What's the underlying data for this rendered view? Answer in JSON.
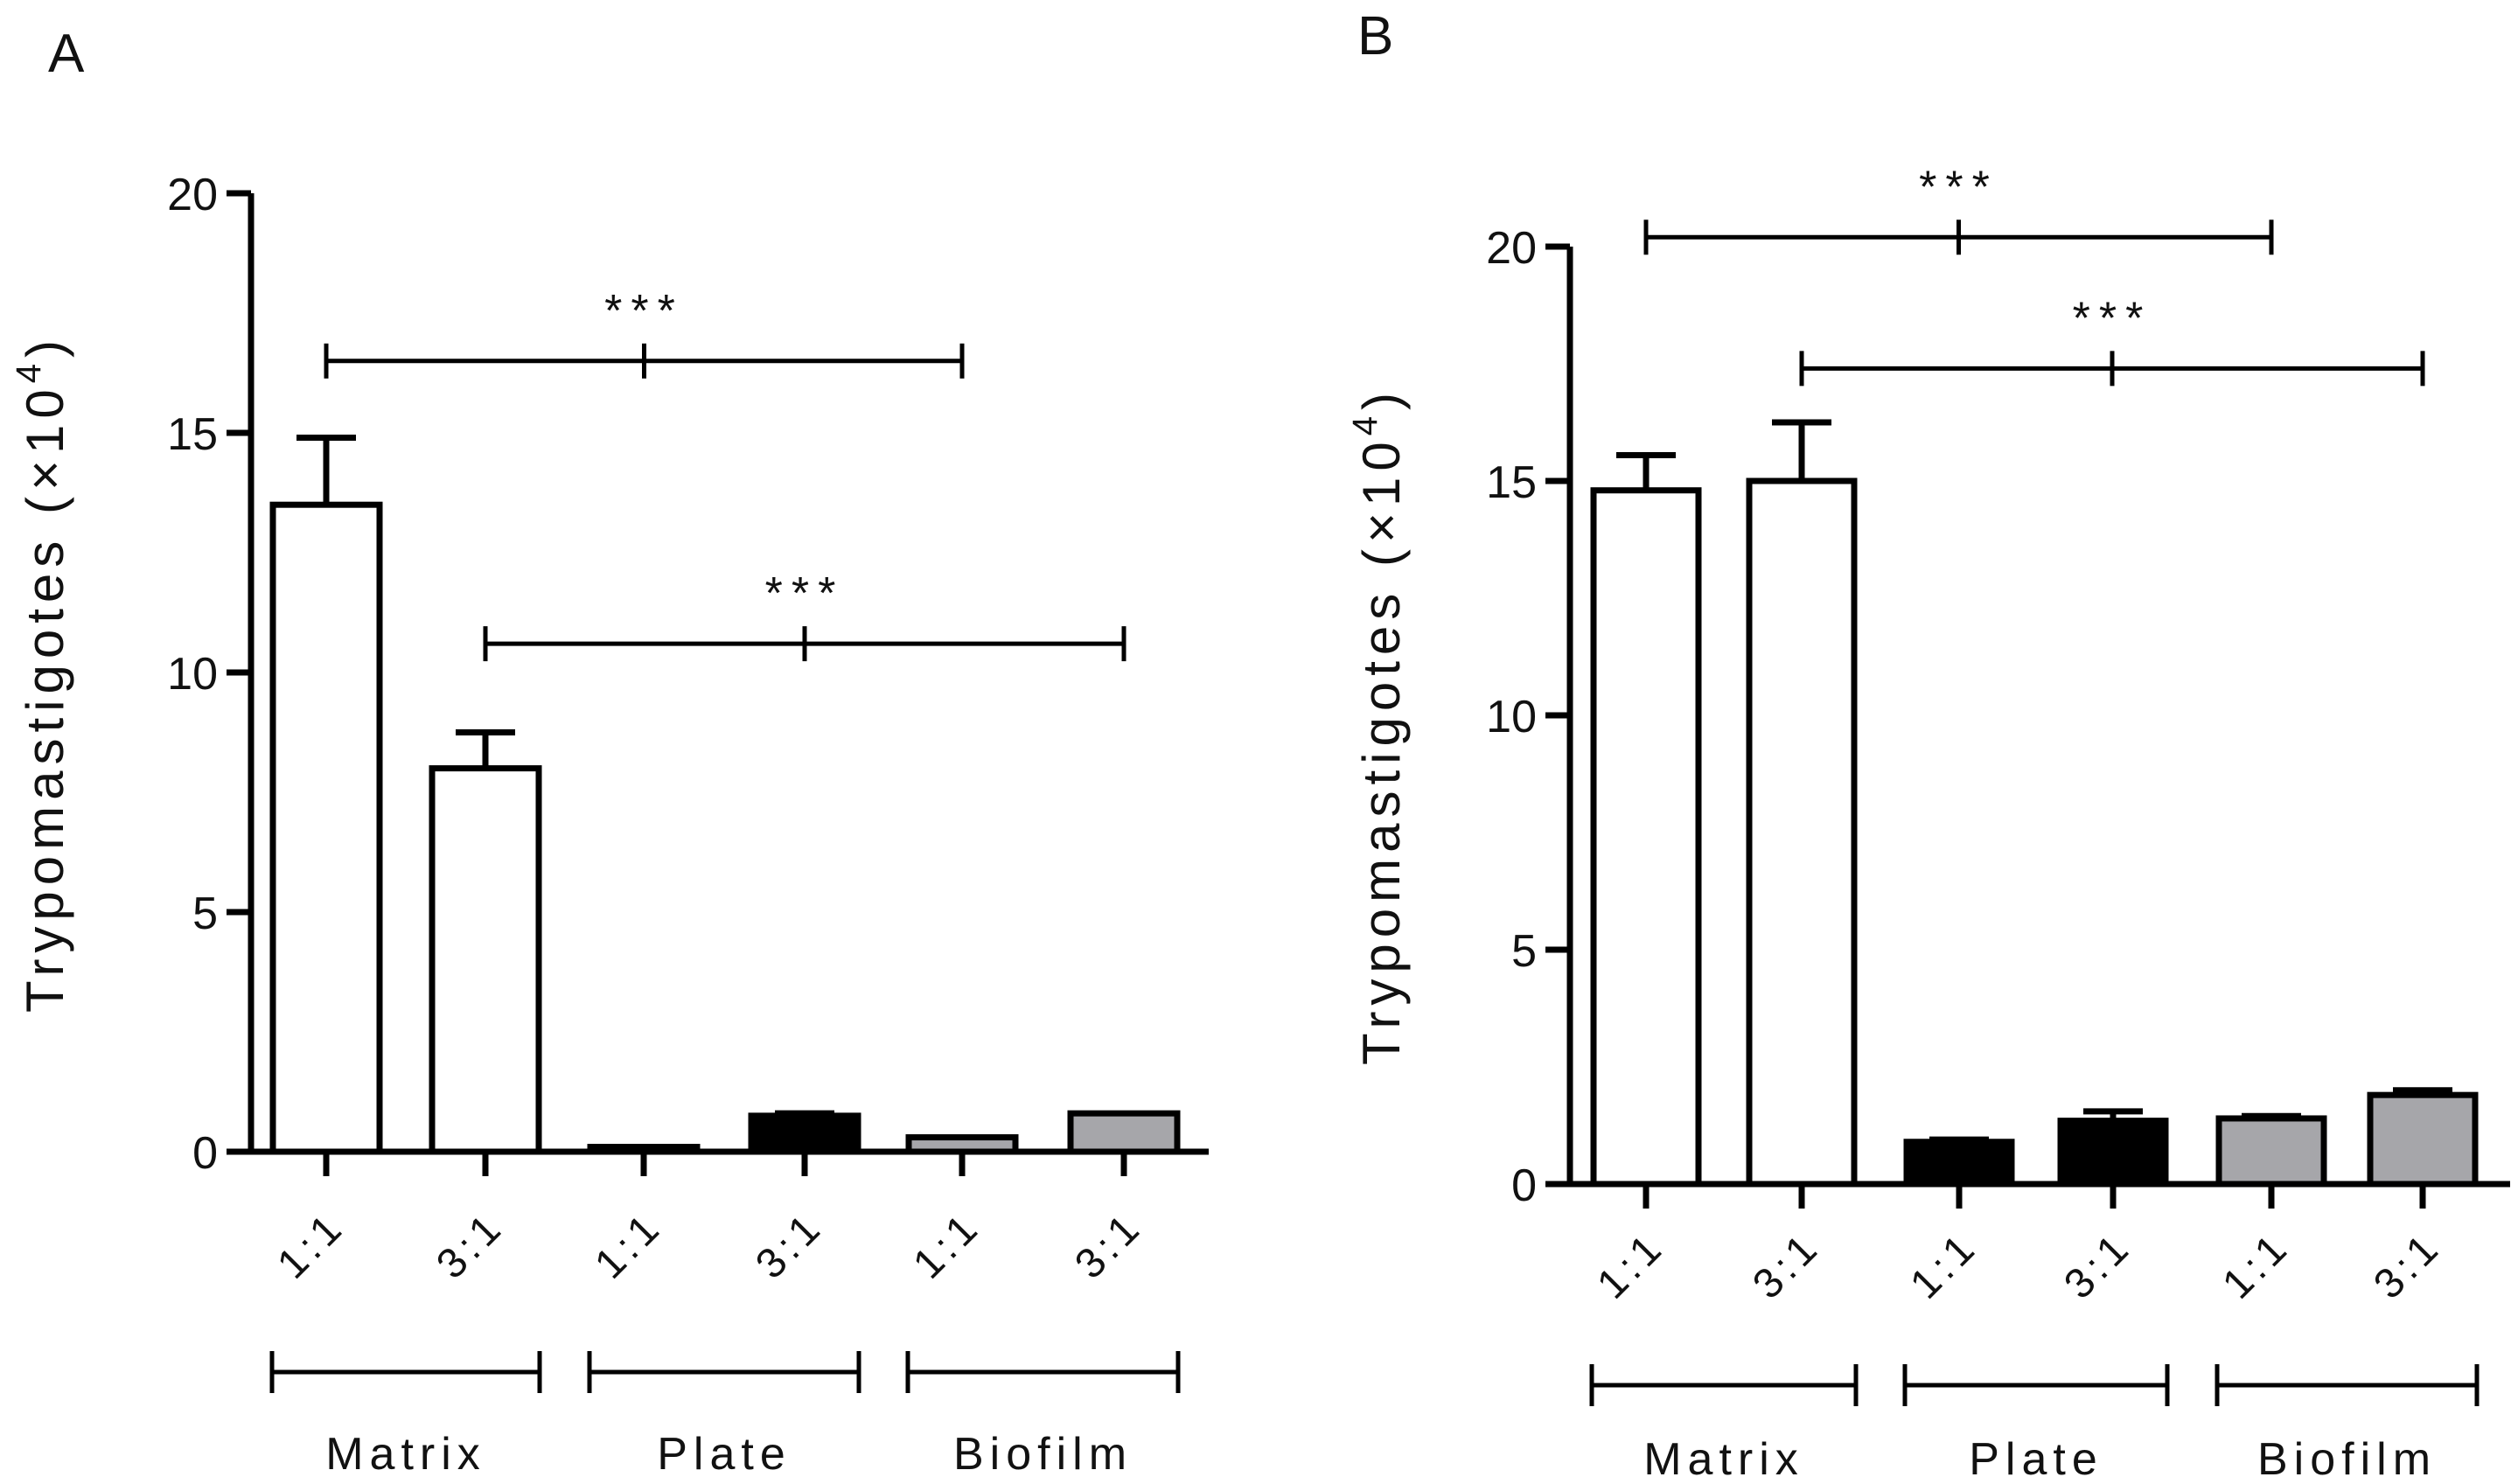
{
  "figure": {
    "panel_labels": [
      "A",
      "B"
    ]
  },
  "colors": {
    "Matrix": "#ffffff",
    "Plate": "#000000",
    "Biofilm": "#a6a6aa",
    "axis": "#000000"
  },
  "chart_data": [
    {
      "panel": "A",
      "type": "bar",
      "ylabel": "Trypomastigotes",
      "ylabel_unit_prefix": "(×10",
      "ylabel_unit_exp": "4",
      "ylabel_unit_suffix": ")",
      "ylim": [
        0,
        20
      ],
      "yticks": [
        "0",
        "5",
        "10",
        "15",
        "20"
      ],
      "categories": [
        "1:1",
        "3:1",
        "1:1",
        "3:1",
        "1:1",
        "3:1"
      ],
      "groups": [
        {
          "name": "Matrix",
          "start": 0,
          "end": 1
        },
        {
          "name": "Plate",
          "start": 2,
          "end": 3
        },
        {
          "name": "Biofilm",
          "start": 4,
          "end": 5
        }
      ],
      "values": [
        13.5,
        8.0,
        0.1,
        0.75,
        0.3,
        0.8
      ],
      "errors": [
        1.4,
        0.75,
        0.0,
        0.05,
        0.0,
        0.0
      ],
      "fills": [
        "Matrix",
        "Matrix",
        "Plate",
        "Plate",
        "Biofilm",
        "Biofilm"
      ],
      "significance": [
        {
          "from": 0,
          "to": 4,
          "y": 16.5,
          "label": "***"
        },
        {
          "from": 1,
          "to": 5,
          "y": 10.6,
          "label": "***"
        }
      ]
    },
    {
      "panel": "B",
      "type": "bar",
      "ylabel": "Trypomastigotes",
      "ylabel_unit_prefix": "(×10",
      "ylabel_unit_exp": "4",
      "ylabel_unit_suffix": ")",
      "ylim": [
        0,
        20
      ],
      "yticks": [
        "0",
        "5",
        "10",
        "15",
        "20"
      ],
      "categories": [
        "1:1",
        "3:1",
        "1:1",
        "3:1",
        "1:1",
        "3:1"
      ],
      "groups": [
        {
          "name": "Matrix",
          "start": 0,
          "end": 1
        },
        {
          "name": "Plate",
          "start": 2,
          "end": 3
        },
        {
          "name": "Biofilm",
          "start": 4,
          "end": 5
        }
      ],
      "values": [
        14.8,
        15.0,
        0.9,
        1.35,
        1.4,
        1.9
      ],
      "errors": [
        0.75,
        1.25,
        0.05,
        0.2,
        0.05,
        0.1
      ],
      "fills": [
        "Matrix",
        "Matrix",
        "Plate",
        "Plate",
        "Biofilm",
        "Biofilm"
      ],
      "significance": [
        {
          "from": 0,
          "to": 4,
          "y": 20.2,
          "label": "***"
        },
        {
          "from": 1,
          "to": 5,
          "y": 17.4,
          "label": "***"
        }
      ]
    }
  ]
}
